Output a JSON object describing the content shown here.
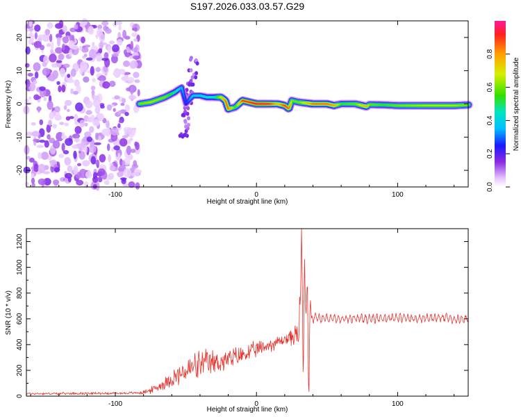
{
  "title": "S197.2026.033.03.57.G29",
  "chart_data": [
    {
      "type": "heatmap",
      "title": "S197.2026.033.03.57.G29",
      "xlabel": "Height of straight line (km)",
      "ylabel": "Frequency (Hz)",
      "xlim": [
        -163,
        150
      ],
      "ylim": [
        -25,
        25
      ],
      "xticks": [
        -100,
        0,
        100
      ],
      "yticks": [
        -20,
        -10,
        0,
        10,
        20
      ],
      "colorbar": {
        "label": "Normalized spectral amplitude",
        "range": [
          0,
          1
        ],
        "ticks": [
          0.0,
          0.2,
          0.4,
          0.6,
          0.8
        ],
        "tick_labels": [
          "0.0",
          "0.2",
          "0.4",
          "0.6",
          "0.8"
        ]
      },
      "ridge": {
        "name": "dominant frequency track",
        "x": [
          -83,
          -75,
          -65,
          -58,
          -53,
          -50,
          -45,
          -40,
          -35,
          -30,
          -25,
          -22,
          -20,
          -15,
          -10,
          -5,
          0,
          5,
          10,
          15,
          20,
          23,
          25,
          30,
          40,
          50,
          55,
          60,
          70,
          78,
          80,
          90,
          100,
          120,
          140,
          150
        ],
        "y": [
          0,
          0.5,
          2,
          3.5,
          5,
          0,
          2.5,
          2.5,
          2,
          2,
          2,
          1,
          -1.5,
          -1,
          1,
          0.5,
          0,
          0,
          0,
          0,
          -0.5,
          -1.5,
          1,
          0.5,
          0,
          0,
          -0.5,
          0,
          0,
          -0.8,
          -0.2,
          -0.3,
          -0.5,
          -0.5,
          -0.5,
          -0.3
        ],
        "amplitude": [
          0.6,
          0.65,
          0.6,
          0.5,
          0.35,
          0.25,
          0.4,
          0.4,
          0.45,
          0.45,
          0.7,
          0.85,
          0.85,
          0.55,
          0.9,
          0.9,
          0.95,
          0.95,
          0.9,
          0.75,
          0.9,
          0.85,
          0.6,
          0.6,
          0.85,
          0.85,
          0.8,
          0.55,
          0.6,
          0.8,
          0.6,
          0.55,
          0.6,
          0.65,
          0.65,
          0.6
        ]
      },
      "noise_region": {
        "x_from": -163,
        "x_to": -83,
        "description": "scattered low-amplitude noise"
      }
    },
    {
      "type": "line",
      "xlabel": "Height of straight line (km)",
      "ylabel": "SNR (10 * v/v)",
      "xlim": [
        -163,
        150
      ],
      "ylim": [
        0,
        1300
      ],
      "xticks": [
        -100,
        0,
        100
      ],
      "yticks": [
        0,
        200,
        400,
        600,
        800,
        1000,
        1200
      ],
      "series": [
        {
          "name": "SNR",
          "color": "#e8302a",
          "x": [
            -163,
            -140,
            -120,
            -100,
            -85,
            -80,
            -75,
            -70,
            -65,
            -60,
            -55,
            -50,
            -45,
            -40,
            -35,
            -30,
            -25,
            -20,
            -15,
            -10,
            -5,
            0,
            5,
            10,
            15,
            20,
            25,
            28,
            30,
            31,
            32,
            33,
            34,
            35,
            36,
            37,
            38,
            40,
            45,
            50,
            60,
            70,
            80,
            90,
            100,
            110,
            120,
            130,
            140,
            150
          ],
          "y": [
            20,
            20,
            22,
            22,
            25,
            30,
            45,
            70,
            100,
            140,
            160,
            190,
            220,
            240,
            250,
            260,
            270,
            280,
            300,
            320,
            340,
            360,
            380,
            400,
            420,
            440,
            460,
            480,
            450,
            800,
            1300,
            120,
            1000,
            600,
            900,
            40,
            700,
            610,
            600,
            610,
            600,
            605,
            600,
            605,
            610,
            600,
            605,
            610,
            600,
            600
          ],
          "noise_amplitude": [
            10,
            10,
            10,
            10,
            12,
            20,
            30,
            40,
            60,
            80,
            100,
            120,
            140,
            140,
            130,
            120,
            110,
            100,
            100,
            90,
            80,
            80,
            70,
            70,
            60,
            60,
            80,
            100,
            120,
            200,
            200,
            200,
            200,
            200,
            200,
            200,
            150,
            60,
            50,
            50,
            50,
            50,
            50,
            50,
            50,
            50,
            50,
            50,
            50,
            50
          ]
        }
      ]
    }
  ]
}
